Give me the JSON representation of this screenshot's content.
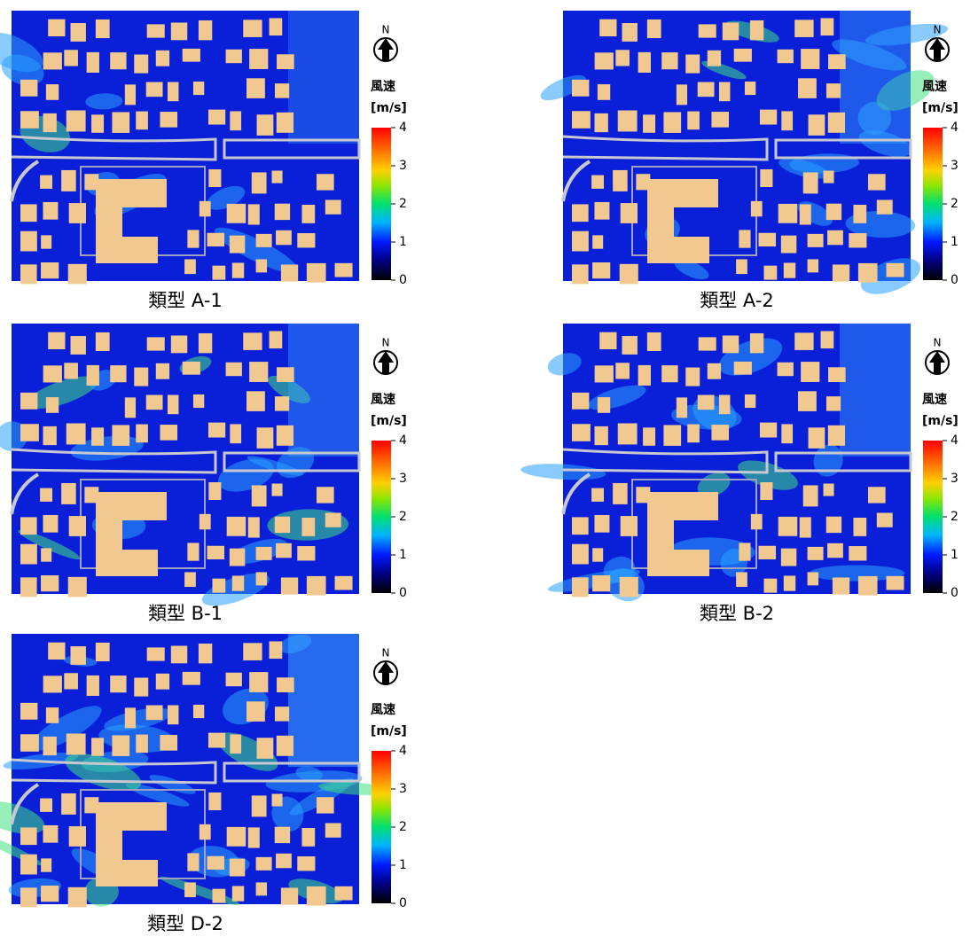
{
  "panels": [
    {
      "caption": "類型 A-1",
      "north": "N",
      "legend_title": "風速",
      "unit": "[m/s]",
      "ticks": [
        0,
        1,
        2,
        3,
        4
      ]
    },
    {
      "caption": "類型 A-2",
      "north": "N",
      "legend_title": "風速",
      "unit": "[m/s]",
      "ticks": [
        0,
        1,
        2,
        3,
        4
      ]
    },
    {
      "caption": "類型 B-1",
      "north": "N",
      "legend_title": "風速",
      "unit": "[m/s]",
      "ticks": [
        0,
        1,
        2,
        3,
        4
      ]
    },
    {
      "caption": "類型 B-2",
      "north": "N",
      "legend_title": "風速",
      "unit": "[m/s]",
      "ticks": [
        0,
        1,
        2,
        3,
        4
      ]
    },
    {
      "caption": "類型 D-2",
      "north": "N",
      "legend_title": "風速",
      "unit": "[m/s]",
      "ticks": [
        0,
        1,
        2,
        3,
        4
      ]
    }
  ]
}
